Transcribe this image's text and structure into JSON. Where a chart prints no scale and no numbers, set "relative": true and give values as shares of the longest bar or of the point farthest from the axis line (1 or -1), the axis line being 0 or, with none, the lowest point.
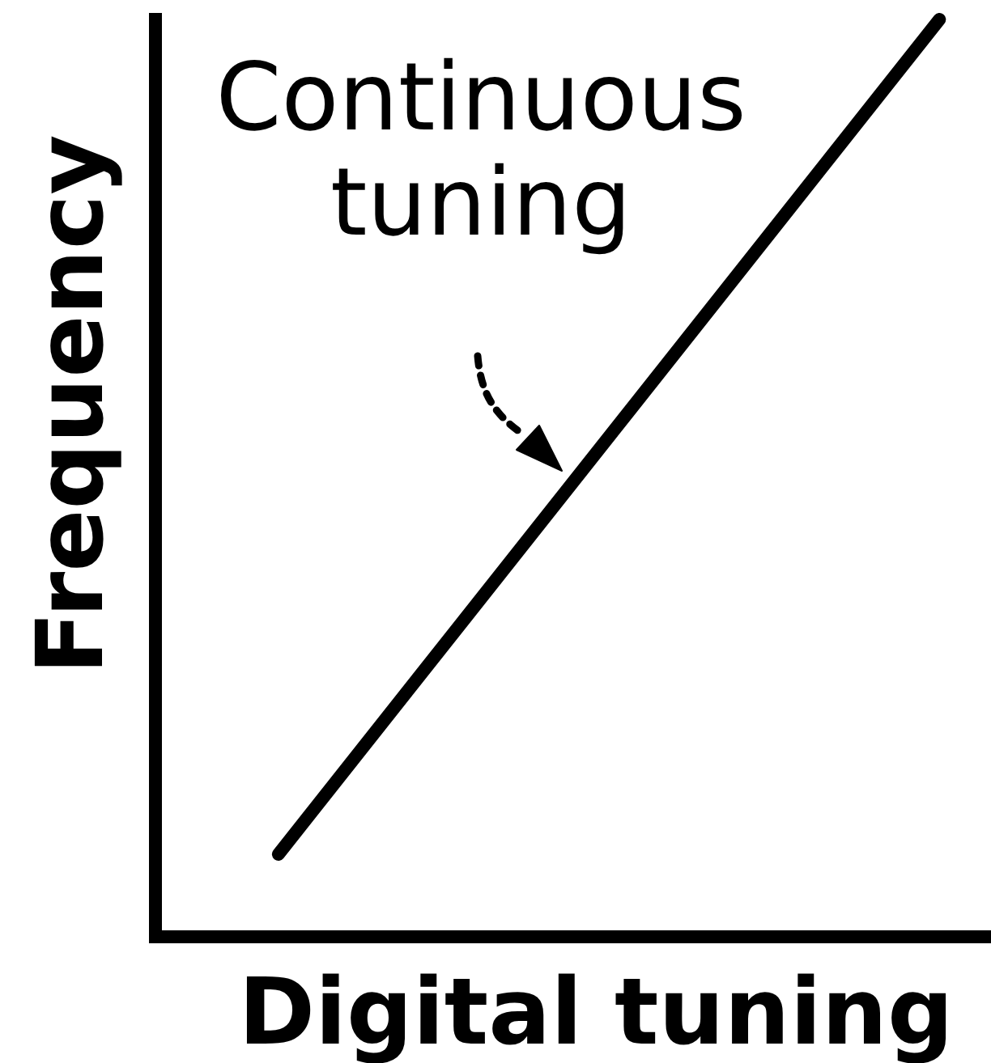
{
  "chart_data": {
    "type": "line",
    "relative": true,
    "xlabel": "Digital tuning",
    "ylabel": "Frequency",
    "categories": [
      null,
      null
    ],
    "series": [
      {
        "name": "Continuous tuning",
        "color": "#000000",
        "values": [
          0.09,
          1
        ]
      }
    ]
  }
}
